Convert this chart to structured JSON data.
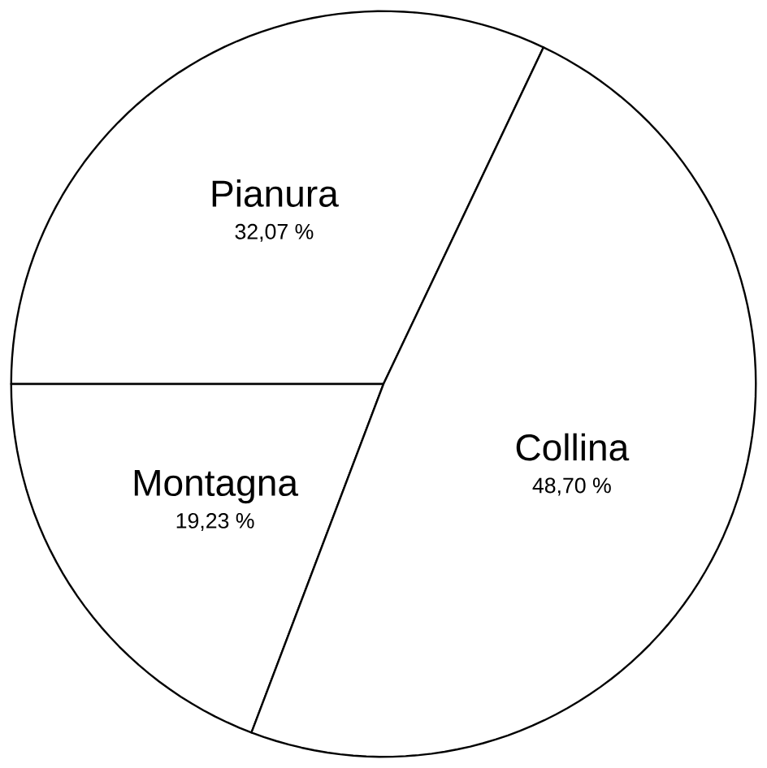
{
  "chart_data": {
    "type": "pie",
    "categories": [
      "Pianura",
      "Montagna",
      "Collina"
    ],
    "values": [
      32.07,
      19.23,
      48.7
    ],
    "value_labels": [
      "32,07 %",
      "19,23 %",
      "48,70 %"
    ],
    "colors": [
      "#ffffff",
      "#ffffff",
      "#ffffff"
    ]
  }
}
